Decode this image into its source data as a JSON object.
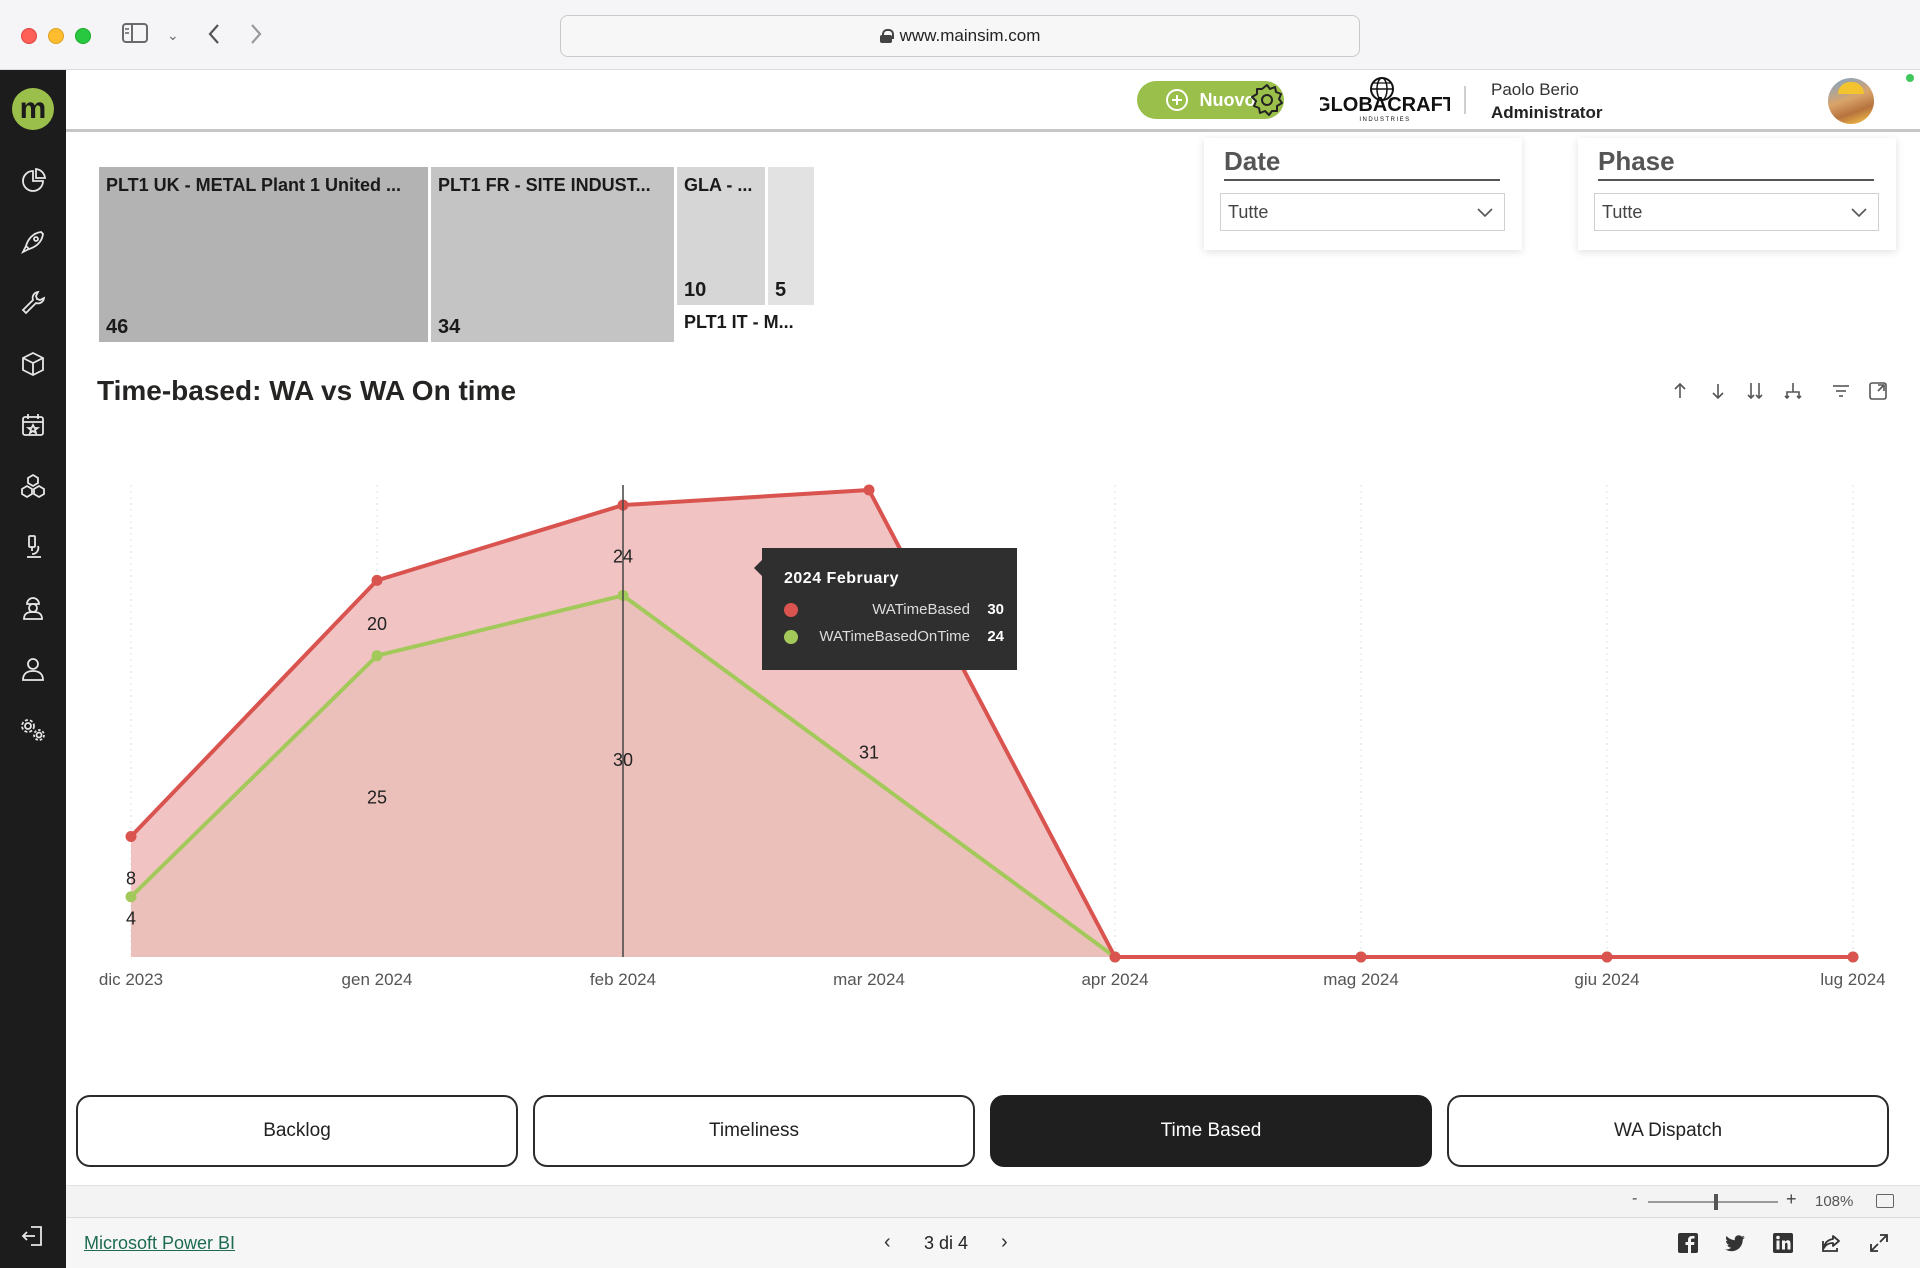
{
  "browser": {
    "url": "www.mainsim.com"
  },
  "header": {
    "new_button": "Nuovo",
    "company_logo_text": "GLOBACRAFT",
    "company_logo_sub": "INDUSTRIES",
    "user_name": "Paolo Berio",
    "user_role": "Administrator"
  },
  "sidebar": {
    "logo": "m",
    "items": [
      {
        "name": "dashboard-icon"
      },
      {
        "name": "rocket-icon"
      },
      {
        "name": "wrench-icon"
      },
      {
        "name": "cube-icon"
      },
      {
        "name": "calendar-icon"
      },
      {
        "name": "boxes-icon"
      },
      {
        "name": "microscope-icon"
      },
      {
        "name": "worker-icon"
      },
      {
        "name": "user-icon"
      },
      {
        "name": "settings-gears-icon"
      }
    ]
  },
  "treemap": {
    "tiles": [
      {
        "label": "PLT1 UK - METAL Plant 1 United ...",
        "value": "46",
        "color": "#b3b3b3"
      },
      {
        "label": "PLT1 FR - SITE INDUST...",
        "value": "34",
        "color": "#c4c4c4"
      },
      {
        "label": "GLA - ...",
        "value": "10",
        "color": "#d6d6d6"
      },
      {
        "label": "",
        "value": "5",
        "color": "#e2e2e2"
      }
    ],
    "footer_label": "PLT1 IT - M..."
  },
  "slicers": {
    "date": {
      "title": "Date",
      "value": "Tutte"
    },
    "phase": {
      "title": "Phase",
      "value": "Tutte"
    }
  },
  "chart_title": "Time-based: WA vs WA On time",
  "chart_data": {
    "type": "area",
    "categories": [
      "dic 2023",
      "gen 2024",
      "feb 2024",
      "mar 2024",
      "apr 2024",
      "mag 2024",
      "giu 2024",
      "lug 2024"
    ],
    "series": [
      {
        "name": "WATimeBased",
        "color": "#d9534f",
        "fill": "#efb9b9",
        "values": [
          8,
          25,
          30,
          31,
          0,
          0,
          0,
          0
        ],
        "labels": [
          "8",
          "25",
          "30",
          "31",
          "",
          "",
          "",
          ""
        ]
      },
      {
        "name": "WATimeBasedOnTime",
        "color": "#a3c95a",
        "fill": "#dde8c0",
        "values": [
          4,
          20,
          24,
          null,
          0,
          0,
          0,
          0
        ],
        "labels": [
          "4",
          "20",
          "24",
          "",
          "",
          "",
          "",
          ""
        ]
      }
    ],
    "xlabel": "",
    "ylabel": "",
    "grid": "vertical-dotted"
  },
  "tooltip": {
    "title": "2024 February",
    "rows": [
      {
        "name": "WATimeBased",
        "value": "30",
        "color": "#d9534f"
      },
      {
        "name": "WATimeBasedOnTime",
        "value": "24",
        "color": "#a3c95a"
      }
    ]
  },
  "nav_buttons": [
    {
      "label": "Backlog",
      "active": false
    },
    {
      "label": "Timeliness",
      "active": false
    },
    {
      "label": "Time Based",
      "active": true
    },
    {
      "label": "WA Dispatch",
      "active": false
    }
  ],
  "zoom": {
    "minus": "-",
    "plus": "+",
    "value": "108%"
  },
  "footer": {
    "powerbi_link": "Microsoft Power BI",
    "pager": "3 di 4",
    "prev": "‹",
    "next": "›"
  }
}
